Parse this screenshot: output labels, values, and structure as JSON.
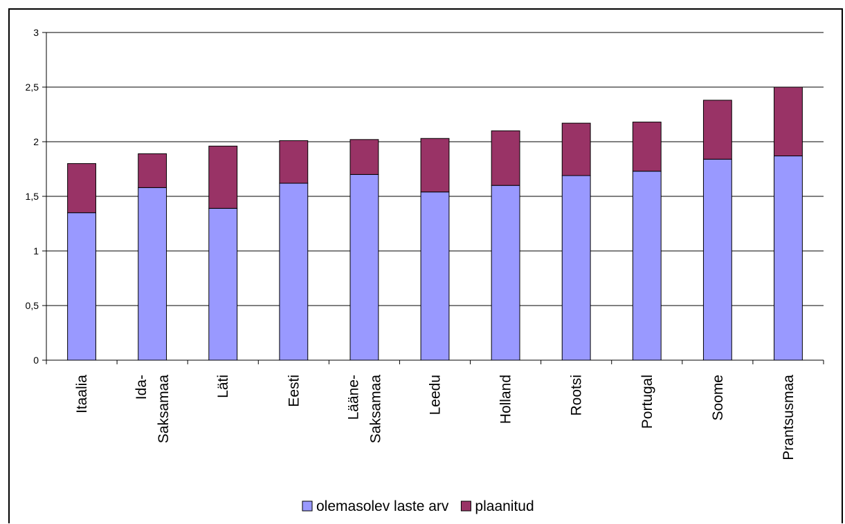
{
  "chart_data": {
    "type": "bar",
    "stacked": true,
    "categories": [
      [
        "Itaalia"
      ],
      [
        "Ida-",
        "Saksamaa"
      ],
      [
        "Läti"
      ],
      [
        "Eesti"
      ],
      [
        "Lääne-",
        "Saksamaa"
      ],
      [
        "Leedu"
      ],
      [
        "Holland"
      ],
      [
        "Rootsi"
      ],
      [
        "Portugal"
      ],
      [
        "Soome"
      ],
      [
        "Prantsusmaa"
      ]
    ],
    "series": [
      {
        "name": "olemasolev laste arv",
        "color": "#9999ff",
        "values": [
          1.35,
          1.58,
          1.39,
          1.62,
          1.7,
          1.54,
          1.6,
          1.69,
          1.73,
          1.84,
          1.87
        ]
      },
      {
        "name": "plaanitud",
        "color": "#993366",
        "values": [
          0.45,
          0.31,
          0.57,
          0.39,
          0.32,
          0.49,
          0.5,
          0.48,
          0.45,
          0.54,
          0.63
        ]
      }
    ],
    "ylim": [
      0,
      3
    ],
    "yticks": [
      "0",
      "0,5",
      "1",
      "1,5",
      "2",
      "2,5",
      "3"
    ],
    "ytick_values": [
      0,
      0.5,
      1,
      1.5,
      2,
      2.5,
      3
    ],
    "grid": true,
    "legend_position": "bottom"
  }
}
